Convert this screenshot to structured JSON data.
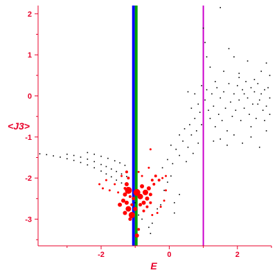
{
  "chart_data": {
    "type": "scatter",
    "title": "",
    "xlabel": "E",
    "ylabel": "<J3>",
    "xlim": [
      -3.85,
      3.0
    ],
    "ylim": [
      -3.65,
      2.2
    ],
    "x_ticks": [
      -2,
      0,
      2
    ],
    "y_ticks": [
      2,
      1,
      0,
      -1,
      -2,
      -3
    ],
    "grid": false,
    "colors": {
      "axis": "#e8002a",
      "small_points": "#000000",
      "large_points": "#ff0000",
      "line_blue": "#0000ff",
      "line_green": "#00a000",
      "line_magenta": "#cc00cc"
    },
    "vertical_lines": [
      {
        "name": "",
        "x": -1.05,
        "color": "#0000ff"
      },
      {
        "name": "",
        "x": -0.97,
        "color": "#00a000"
      },
      {
        "name": "",
        "x": 1.0,
        "color": "#cc00cc"
      }
    ],
    "series": [
      {
        "name": "",
        "color": "#000000",
        "marker": "small-dot",
        "points": [
          [
            -3.8,
            -1.41
          ],
          [
            -3.6,
            -1.43
          ],
          [
            -3.4,
            -1.46
          ],
          [
            -3.2,
            -1.49
          ],
          [
            -3.0,
            -1.53
          ],
          [
            -2.8,
            -1.57
          ],
          [
            -2.6,
            -1.62
          ],
          [
            -2.4,
            -1.68
          ],
          [
            -2.2,
            -1.75
          ],
          [
            -2.0,
            -1.83
          ],
          [
            -1.85,
            -1.9
          ],
          [
            -1.7,
            -1.97
          ],
          [
            -1.55,
            -2.05
          ],
          [
            -1.4,
            -2.12
          ],
          [
            -3.0,
            -1.42
          ],
          [
            -2.8,
            -1.45
          ],
          [
            -2.6,
            -1.49
          ],
          [
            -2.4,
            -1.54
          ],
          [
            -2.2,
            -1.6
          ],
          [
            -2.0,
            -1.67
          ],
          [
            -1.85,
            -1.72
          ],
          [
            -1.7,
            -1.78
          ],
          [
            -1.55,
            -1.84
          ],
          [
            -1.4,
            -1.9
          ],
          [
            -1.25,
            -1.96
          ],
          [
            -2.4,
            -1.38
          ],
          [
            -2.2,
            -1.42
          ],
          [
            -2.0,
            -1.47
          ],
          [
            -1.8,
            -1.52
          ],
          [
            -1.6,
            -1.58
          ],
          [
            -1.45,
            -1.63
          ],
          [
            -1.3,
            -1.69
          ],
          [
            -1.0,
            -2.6
          ],
          [
            -0.9,
            -2.9
          ],
          [
            -0.8,
            -3.0
          ],
          [
            -0.6,
            -3.2
          ],
          [
            -0.55,
            -3.35
          ],
          [
            -0.5,
            -3.1
          ],
          [
            -0.35,
            -2.75
          ],
          [
            -0.25,
            -2.65
          ],
          [
            -0.15,
            -2.3
          ],
          [
            -0.05,
            -2.1
          ],
          [
            0.05,
            -1.95
          ],
          [
            0.15,
            -2.6
          ],
          [
            0.15,
            -2.85
          ],
          [
            0.3,
            -2.4
          ],
          [
            -0.2,
            -1.75
          ],
          [
            -0.05,
            -1.55
          ],
          [
            0.05,
            -1.2
          ],
          [
            0.1,
            -1.65
          ],
          [
            0.2,
            -1.3
          ],
          [
            0.3,
            -1.45
          ],
          [
            0.3,
            -0.95
          ],
          [
            0.4,
            -1.1
          ],
          [
            0.45,
            -0.8
          ],
          [
            0.5,
            -1.6
          ],
          [
            0.55,
            -1.25
          ],
          [
            0.6,
            -0.7
          ],
          [
            0.65,
            -0.95
          ],
          [
            0.7,
            -1.4
          ],
          [
            0.75,
            -0.55
          ],
          [
            0.8,
            -0.85
          ],
          [
            0.85,
            -1.15
          ],
          [
            0.9,
            -0.4
          ],
          [
            0.95,
            -0.7
          ],
          [
            0.55,
            0.1
          ],
          [
            0.65,
            -0.3
          ],
          [
            0.75,
            0.05
          ],
          [
            0.85,
            -0.2
          ],
          [
            0.95,
            0.25
          ],
          [
            1.0,
            1.65
          ],
          [
            1.05,
            1.3
          ],
          [
            1.1,
            0.95
          ],
          [
            1.2,
            0.7
          ],
          [
            1.35,
            0.35
          ],
          [
            1.5,
            2.15
          ],
          [
            1.6,
            0.6
          ],
          [
            1.75,
            1.15
          ],
          [
            1.9,
            0.95
          ],
          [
            2.05,
            0.55
          ],
          [
            2.3,
            0.85
          ],
          [
            2.5,
            0.4
          ],
          [
            2.7,
            0.6
          ],
          [
            2.85,
            0.8
          ],
          [
            2.95,
            0.5
          ],
          [
            1.05,
            -0.1
          ],
          [
            1.1,
            0.15
          ],
          [
            1.15,
            -0.35
          ],
          [
            1.2,
            -0.55
          ],
          [
            1.25,
            0.05
          ],
          [
            1.3,
            -0.25
          ],
          [
            1.35,
            -0.75
          ],
          [
            1.4,
            0.2
          ],
          [
            1.45,
            -0.45
          ],
          [
            1.5,
            -0.05
          ],
          [
            1.55,
            -0.6
          ],
          [
            1.6,
            0.1
          ],
          [
            1.65,
            -0.3
          ],
          [
            1.7,
            -0.85
          ],
          [
            1.75,
            0.3
          ],
          [
            1.8,
            -0.15
          ],
          [
            1.85,
            -0.5
          ],
          [
            1.9,
            0.05
          ],
          [
            1.95,
            -0.35
          ],
          [
            2.0,
            0.25
          ],
          [
            2.05,
            -0.1
          ],
          [
            2.1,
            -0.6
          ],
          [
            2.15,
            0.15
          ],
          [
            2.2,
            -0.3
          ],
          [
            2.25,
            0.35
          ],
          [
            2.3,
            -0.05
          ],
          [
            2.35,
            -0.45
          ],
          [
            2.4,
            0.2
          ],
          [
            2.45,
            -0.2
          ],
          [
            2.5,
            0.1
          ],
          [
            2.55,
            -0.55
          ],
          [
            2.6,
            0.3
          ],
          [
            2.65,
            -0.1
          ],
          [
            2.7,
            0.05
          ],
          [
            2.75,
            -0.35
          ],
          [
            2.8,
            0.15
          ],
          [
            2.85,
            -0.25
          ],
          [
            2.9,
            0.2
          ],
          [
            2.95,
            -0.05
          ],
          [
            2.05,
            0.45
          ],
          [
            2.2,
            0.05
          ],
          [
            2.4,
            -0.75
          ],
          [
            2.6,
            -0.2
          ],
          [
            2.8,
            -0.6
          ],
          [
            2.95,
            -0.45
          ],
          [
            1.3,
            -1.1
          ],
          [
            1.5,
            -1.05
          ],
          [
            1.7,
            -1.2
          ],
          [
            1.9,
            -0.95
          ],
          [
            2.15,
            -1.15
          ],
          [
            2.4,
            -1.0
          ],
          [
            2.65,
            -1.25
          ],
          [
            2.85,
            -0.85
          ]
        ]
      },
      {
        "name": "",
        "color": "#ff0000",
        "marker": "large-point",
        "points": [
          [
            -1.85,
            -2.05,
            1.5
          ],
          [
            -1.6,
            -2.15,
            1.5
          ],
          [
            -1.4,
            -1.95,
            1.5
          ],
          [
            -1.25,
            -1.85,
            2
          ],
          [
            -1.2,
            -2.0,
            2
          ],
          [
            -1.3,
            -2.25,
            2
          ],
          [
            -1.5,
            -2.35,
            1.5
          ],
          [
            -1.15,
            -2.45,
            2
          ],
          [
            -1.3,
            -2.4,
            3
          ],
          [
            -1.25,
            -2.6,
            3
          ],
          [
            -1.2,
            -2.75,
            4
          ],
          [
            -1.3,
            -2.85,
            3
          ],
          [
            -1.45,
            -2.65,
            3
          ],
          [
            -1.35,
            -2.55,
            3
          ],
          [
            -1.15,
            -3.0,
            2.5
          ],
          [
            -1.1,
            -2.9,
            4.5
          ],
          [
            -1.2,
            -2.3,
            5
          ],
          [
            -1.25,
            -2.15,
            3
          ],
          [
            -1.05,
            -2.5,
            2.5
          ],
          [
            -0.95,
            -2.35,
            5
          ],
          [
            -0.85,
            -2.45,
            4
          ],
          [
            -0.8,
            -2.2,
            3
          ],
          [
            -0.75,
            -2.6,
            3
          ],
          [
            -0.7,
            -2.35,
            4
          ],
          [
            -0.65,
            -2.5,
            3
          ],
          [
            -0.6,
            -2.25,
            3
          ],
          [
            -0.55,
            -2.4,
            2.5
          ],
          [
            -0.5,
            -2.05,
            2
          ],
          [
            -0.45,
            -2.15,
            2
          ],
          [
            -0.4,
            -1.95,
            2
          ],
          [
            -0.3,
            -2.05,
            2
          ],
          [
            -0.2,
            -2.0,
            1.5
          ],
          [
            -0.1,
            -1.95,
            1.5
          ],
          [
            -0.85,
            -2.65,
            2.5
          ],
          [
            -0.75,
            -2.8,
            2
          ],
          [
            -0.65,
            -2.7,
            2
          ],
          [
            -0.55,
            -2.6,
            2
          ],
          [
            -0.9,
            -1.85,
            1.5
          ],
          [
            -0.8,
            -1.95,
            1.5
          ],
          [
            -0.6,
            -1.75,
            1.5
          ],
          [
            -0.95,
            -3.4,
            3
          ],
          [
            -0.9,
            -3.25,
            2
          ],
          [
            -0.5,
            -2.9,
            1.5
          ],
          [
            -0.35,
            -2.85,
            1.5
          ],
          [
            -0.25,
            -2.7,
            1.5
          ],
          [
            -0.15,
            -2.55,
            1.5
          ],
          [
            -0.1,
            -2.3,
            1.5
          ],
          [
            -1.0,
            -2.75,
            3
          ],
          [
            -1.1,
            -2.65,
            2
          ],
          [
            -0.55,
            -1.3,
            1.5
          ],
          [
            -1.95,
            -2.25,
            1.5
          ],
          [
            -2.05,
            -2.15,
            1.5
          ],
          [
            -1.75,
            -2.3,
            1.5
          ]
        ]
      }
    ]
  }
}
